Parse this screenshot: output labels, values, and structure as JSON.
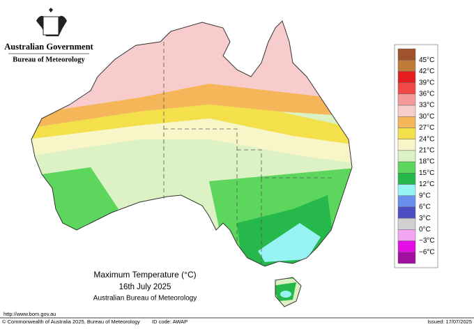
{
  "header": {
    "government": "Australian Government",
    "agency": "Bureau of Meteorology"
  },
  "map": {
    "title": "Maximum Temperature (°C)",
    "date": "16th July 2025",
    "source": "Australian Bureau of Meteorology"
  },
  "legend": {
    "labels": [
      "45°C",
      "42°C",
      "39°C",
      "36°C",
      "33°C",
      "30°C",
      "27°C",
      "24°C",
      "21°C",
      "18°C",
      "15°C",
      "12°C",
      "9°C",
      "6°C",
      "3°C",
      "0°C",
      "−3°C",
      "−6°C"
    ],
    "colors": [
      "#a0522d",
      "#c07a3a",
      "#e41e1e",
      "#f24848",
      "#f49a9a",
      "#f8cccc",
      "#f4b658",
      "#f4e04a",
      "#f8f6c8",
      "#dcf2c4",
      "#5cd65c",
      "#26b84a",
      "#98f4f4",
      "#6a90ee",
      "#4e4ec4",
      "#d0d0d0",
      "#f2a6f2",
      "#e60ee6",
      "#a0109e"
    ]
  },
  "footer": {
    "url": "http://www.bom.gov.au",
    "copyright": "© Commonwealth of Australia 2025, Bureau of Meteorology",
    "id": "ID code: AWAP",
    "issued": "Issued: 17/07/2025"
  }
}
